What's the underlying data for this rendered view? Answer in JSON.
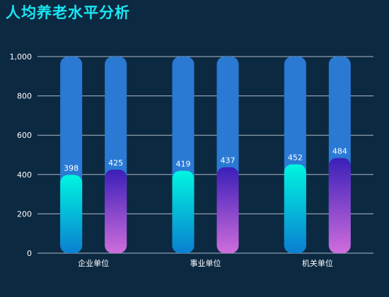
{
  "title": "人均养老水平分析",
  "colors": {
    "background": "#0c2942",
    "title": "#19e6f2",
    "track": "#2a7ad4",
    "series1_top": "#00f5e0",
    "series1_bottom": "#0a7fd0",
    "series2_top": "#3a1fb8",
    "series2_bottom": "#d06ddc",
    "grid": "#c9d3dc"
  },
  "chart_data": {
    "type": "bar",
    "categories": [
      "企业单位",
      "事业单位",
      "机关单位"
    ],
    "series": [
      {
        "values": [
          398,
          419,
          452
        ]
      },
      {
        "values": [
          425,
          437,
          484
        ]
      }
    ],
    "ylim": [
      0,
      1000
    ],
    "yticks": [
      0,
      200,
      400,
      600,
      800,
      1000
    ],
    "ytick_labels": [
      "0",
      "200",
      "400",
      "600",
      "800",
      "1,000"
    ],
    "grid": true,
    "background_bar_max": 1000,
    "data_labels": true
  }
}
